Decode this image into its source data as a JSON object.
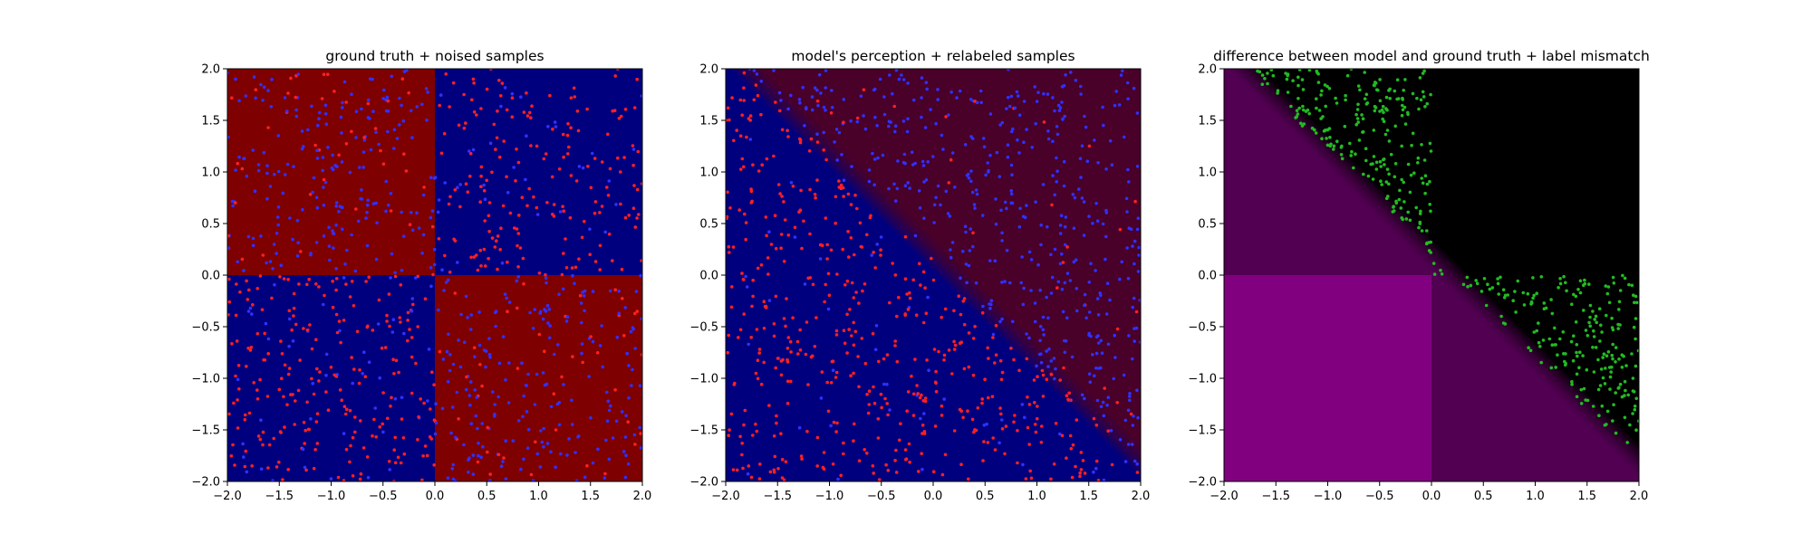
{
  "chart_data": [
    {
      "type": "heatmap",
      "title": "ground truth + noised samples",
      "xlim": [
        -2.0,
        2.0
      ],
      "ylim": [
        -2.0,
        2.0
      ],
      "xticks": [
        -2.0,
        -1.5,
        -1.0,
        -0.5,
        0.0,
        0.5,
        1.0,
        1.5,
        2.0
      ],
      "yticks": [
        -2.0,
        -1.5,
        -1.0,
        -0.5,
        0.0,
        0.5,
        1.0,
        1.5,
        2.0
      ],
      "xtick_labels": [
        "−2.0",
        "−1.5",
        "−1.0",
        "−0.5",
        "0.0",
        "0.5",
        "1.0",
        "1.5",
        "2.0"
      ],
      "ytick_labels": [
        "−2.0",
        "−1.5",
        "−1.0",
        "−0.5",
        "0.0",
        "0.5",
        "1.0",
        "1.5",
        "2.0"
      ],
      "background": "quadrant checkerboard: x*y>0 blue (#00007f), x*y<0 red (#7f0000)",
      "regions": [
        {
          "x": [
            -2,
            0
          ],
          "y": [
            0,
            2
          ],
          "color": "#7f0000"
        },
        {
          "x": [
            0,
            2
          ],
          "y": [
            0,
            2
          ],
          "color": "#00007f"
        },
        {
          "x": [
            -2,
            0
          ],
          "y": [
            -2,
            0
          ],
          "color": "#00007f"
        },
        {
          "x": [
            0,
            2
          ],
          "y": [
            -2,
            0
          ],
          "color": "#7f0000"
        }
      ],
      "scatter": {
        "count": 1000,
        "distribution": "approx. uniform in [-2,2]x[-2,2]",
        "colors": [
          "#ff2020",
          "#3030ff"
        ],
        "marker_size": "small"
      },
      "grid": false
    },
    {
      "type": "heatmap",
      "title": "model's perception + relabeled samples",
      "xlim": [
        -2.0,
        2.0
      ],
      "ylim": [
        -2.0,
        2.0
      ],
      "xticks": [
        -2.0,
        -1.5,
        -1.0,
        -0.5,
        0.0,
        0.5,
        1.0,
        1.5,
        2.0
      ],
      "yticks": [
        -2.0,
        -1.5,
        -1.0,
        -0.5,
        0.0,
        0.5,
        1.0,
        1.5,
        2.0
      ],
      "xtick_labels": [
        "−2.0",
        "−1.5",
        "−1.0",
        "−0.5",
        "0.0",
        "0.5",
        "1.0",
        "1.5",
        "2.0"
      ],
      "ytick_labels": [
        "−2.0",
        "−1.5",
        "−1.0",
        "−0.5",
        "0.0",
        "0.5",
        "1.0",
        "1.5",
        "2.0"
      ],
      "background": "diagonal split along x + y = 0.2: below blue (#00007f), above red (#7f0000), soft edge",
      "boundary": {
        "line": "x + y = 0.2",
        "below_color": "#00007f",
        "above_color": "#7f0000"
      },
      "scatter": {
        "count": 1000,
        "distribution": "approx. uniform in [-2,2]x[-2,2]",
        "colors": [
          "#ff2020",
          "#3030ff"
        ],
        "marker_size": "small"
      },
      "grid": false
    },
    {
      "type": "heatmap",
      "title": "difference between model and ground truth + label mismatch",
      "xlim": [
        -2.0,
        2.0
      ],
      "ylim": [
        -2.0,
        2.0
      ],
      "xticks": [
        -2.0,
        -1.5,
        -1.0,
        -0.5,
        0.0,
        0.5,
        1.0,
        1.5,
        2.0
      ],
      "yticks": [
        -2.0,
        -1.5,
        -1.0,
        -0.5,
        0.0,
        0.5,
        1.0,
        1.5,
        2.0
      ],
      "xtick_labels": [
        "−2.0",
        "−1.5",
        "−1.0",
        "−0.5",
        "0.0",
        "0.5",
        "1.0",
        "1.5",
        "2.0"
      ],
      "ytick_labels": [
        "−2.0",
        "−1.5",
        "−1.0",
        "−0.5",
        "0.0",
        "0.5",
        "1.0",
        "1.5",
        "2.0"
      ],
      "background": "purple (#800080) where ground truth and model disagree, black (#000000) where they agree",
      "colors": {
        "mismatch": "#800080",
        "match": "#000000"
      },
      "scatter": {
        "count": 450,
        "distribution": "samples in the black (agreement) regions",
        "colors": [
          "#22bb22"
        ],
        "marker_size": "small"
      },
      "grid": false
    }
  ]
}
